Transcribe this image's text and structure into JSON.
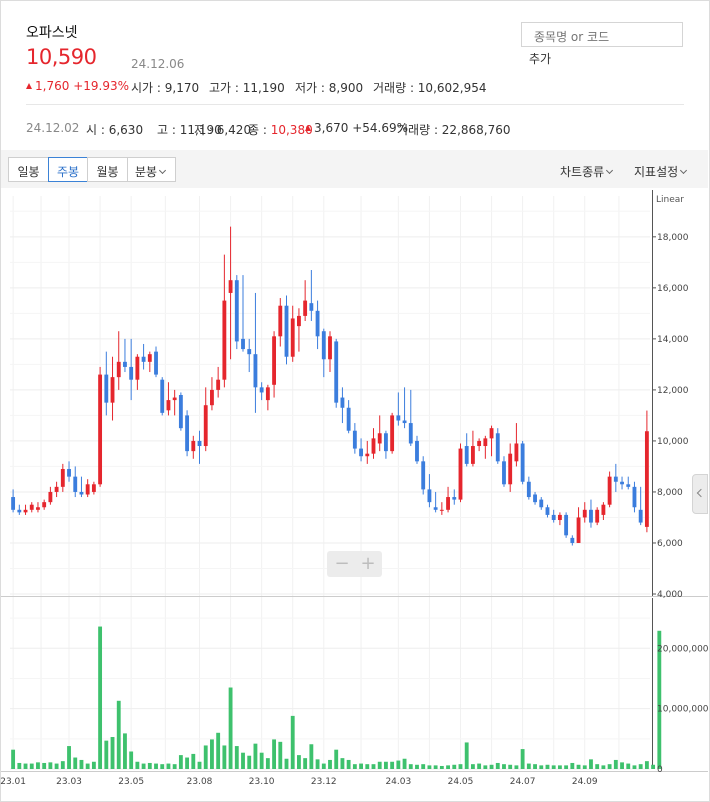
{
  "stock": {
    "name": "오파스넷",
    "price": "10,590",
    "date": "24.12.06",
    "change": "1,760",
    "change_pct": "+19.93%",
    "open_label": "시가",
    "open": "9,170",
    "high_label": "고가",
    "high": "11,190",
    "low_label": "저가",
    "low": "8,900",
    "volume_label": "거래량",
    "volume": "10,602,954"
  },
  "week": {
    "date": "24.12.02",
    "open_label": "시",
    "open": "6,630",
    "high_label": "고",
    "high": "11,190",
    "low_label": "저",
    "low": "6,420",
    "close_label": "종",
    "close": "10,380",
    "change": "3,670",
    "change_pct": "+54.69%",
    "volume_label": "거래량",
    "volume": "22,868,760"
  },
  "search": {
    "placeholder": "종목명 or 코드",
    "add_label": "추가"
  },
  "toolbar": {
    "tabs": [
      "일봉",
      "주봉",
      "월봉",
      "분봉"
    ],
    "active_tab": "주봉",
    "chart_type_label": "차트종류",
    "indicator_label": "지표설정"
  },
  "colors": {
    "up": "#e5262d",
    "down": "#3b7ddd",
    "volume": "#3ec16d"
  },
  "chart_data": {
    "type": "candlestick",
    "scale_label": "Linear",
    "x_ticks": [
      "23.01",
      "23.03",
      "23.05",
      "23.08",
      "23.10",
      "23.12",
      "24.03",
      "24.05",
      "24.07",
      "24.09"
    ],
    "x_tick_index": [
      0,
      9,
      19,
      30,
      40,
      50,
      62,
      72,
      82,
      92
    ],
    "y_ticks": [
      "4,000",
      "6,000",
      "8,000",
      "10,000",
      "12,000",
      "14,000",
      "16,000",
      "18,000"
    ],
    "ylim": [
      4000,
      19600
    ],
    "volume_ticks": [
      "0",
      "10,000,000",
      "20,000,000"
    ],
    "volume_ylim": [
      0,
      28000000
    ],
    "candles": [
      [
        7800,
        8100,
        7200,
        7300
      ],
      [
        7300,
        7500,
        7100,
        7200
      ],
      [
        7200,
        7500,
        7100,
        7300
      ],
      [
        7300,
        7600,
        7200,
        7500
      ],
      [
        7300,
        7600,
        7200,
        7400
      ],
      [
        7400,
        7700,
        7300,
        7600
      ],
      [
        7600,
        8200,
        7500,
        8000
      ],
      [
        8000,
        8400,
        7800,
        8200
      ],
      [
        8200,
        9100,
        8000,
        8900
      ],
      [
        8900,
        9200,
        8400,
        8600
      ],
      [
        8600,
        9000,
        7800,
        8000
      ],
      [
        8000,
        8600,
        7800,
        7900
      ],
      [
        7900,
        8500,
        7800,
        8300
      ],
      [
        8000,
        8400,
        7900,
        8300
      ],
      [
        8300,
        12900,
        8200,
        12600
      ],
      [
        12600,
        13500,
        11000,
        11500
      ],
      [
        11500,
        13300,
        10800,
        12500
      ],
      [
        12500,
        14300,
        12000,
        13100
      ],
      [
        13100,
        14000,
        12700,
        12900
      ],
      [
        12900,
        14000,
        11600,
        12400
      ],
      [
        12400,
        13400,
        12000,
        13300
      ],
      [
        13300,
        13800,
        12800,
        13100
      ],
      [
        13100,
        13500,
        12700,
        13400
      ],
      [
        13500,
        13700,
        12500,
        12600
      ],
      [
        12400,
        12500,
        11000,
        11100
      ],
      [
        11200,
        12300,
        11000,
        11600
      ],
      [
        11600,
        12000,
        11000,
        11700
      ],
      [
        11800,
        11900,
        10400,
        10500
      ],
      [
        11000,
        11200,
        9400,
        9600
      ],
      [
        9600,
        10200,
        9300,
        10000
      ],
      [
        10000,
        10400,
        9100,
        9800
      ],
      [
        9800,
        12100,
        9600,
        11400
      ],
      [
        11400,
        12500,
        11200,
        12000
      ],
      [
        12000,
        12900,
        11700,
        12400
      ],
      [
        12400,
        17300,
        12100,
        15500
      ],
      [
        15800,
        18400,
        13200,
        16300
      ],
      [
        16300,
        16500,
        13600,
        13900
      ],
      [
        14000,
        16500,
        13500,
        13600
      ],
      [
        13600,
        14000,
        12700,
        13400
      ],
      [
        13400,
        15800,
        11100,
        12100
      ],
      [
        12100,
        12300,
        11600,
        11900
      ],
      [
        11600,
        12200,
        11200,
        12100
      ],
      [
        12200,
        14300,
        11700,
        14100
      ],
      [
        14100,
        15600,
        13700,
        15300
      ],
      [
        15300,
        15700,
        13000,
        13300
      ],
      [
        13300,
        15300,
        13100,
        14800
      ],
      [
        14500,
        15200,
        13500,
        14900
      ],
      [
        14900,
        16300,
        14700,
        15500
      ],
      [
        15400,
        16700,
        14700,
        15100
      ],
      [
        15100,
        15500,
        13600,
        14100
      ],
      [
        14300,
        14400,
        12500,
        13200
      ],
      [
        13200,
        14300,
        12700,
        14100
      ],
      [
        13900,
        14000,
        11300,
        11500
      ],
      [
        11700,
        12100,
        10700,
        11300
      ],
      [
        11300,
        11600,
        10300,
        10400
      ],
      [
        10400,
        10700,
        9500,
        9700
      ],
      [
        9700,
        10100,
        9200,
        9400
      ],
      [
        9400,
        10000,
        9100,
        9500
      ],
      [
        9500,
        10500,
        9300,
        10100
      ],
      [
        9900,
        11000,
        9600,
        10300
      ],
      [
        10300,
        10400,
        9300,
        9600
      ],
      [
        9600,
        11100,
        9500,
        11000
      ],
      [
        11000,
        11900,
        10600,
        10800
      ],
      [
        10800,
        12100,
        10500,
        10700
      ],
      [
        10700,
        12000,
        9800,
        9900
      ],
      [
        10000,
        10200,
        9100,
        9200
      ],
      [
        9200,
        9400,
        7900,
        8100
      ],
      [
        8100,
        8700,
        7400,
        7600
      ],
      [
        7400,
        8000,
        7200,
        7300
      ],
      [
        7300,
        7600,
        7100,
        7300
      ],
      [
        7300,
        8200,
        7200,
        7800
      ],
      [
        7800,
        8100,
        7500,
        7700
      ],
      [
        7700,
        9900,
        7600,
        9700
      ],
      [
        9800,
        10300,
        9000,
        9100
      ],
      [
        9100,
        10400,
        9000,
        9800
      ],
      [
        9800,
        10100,
        9600,
        10000
      ],
      [
        9800,
        10200,
        9300,
        10100
      ],
      [
        10100,
        10600,
        9400,
        10500
      ],
      [
        10300,
        10500,
        9100,
        9200
      ],
      [
        9200,
        9400,
        8200,
        8300
      ],
      [
        8300,
        9900,
        8000,
        9500
      ],
      [
        9200,
        10700,
        9000,
        9900
      ],
      [
        9900,
        10000,
        8300,
        8400
      ],
      [
        8400,
        8600,
        7700,
        7800
      ],
      [
        7900,
        8000,
        7500,
        7600
      ],
      [
        7700,
        7800,
        7300,
        7400
      ],
      [
        7400,
        7500,
        7000,
        7100
      ],
      [
        7100,
        7300,
        6800,
        6900
      ],
      [
        6900,
        7200,
        6700,
        7100
      ],
      [
        7100,
        7200,
        6200,
        6300
      ],
      [
        6200,
        6300,
        5900,
        6000
      ],
      [
        6000,
        7400,
        6000,
        7000
      ],
      [
        7000,
        7600,
        6800,
        7300
      ],
      [
        7300,
        7700,
        6600,
        6800
      ],
      [
        6800,
        7400,
        6700,
        7300
      ],
      [
        7100,
        7600,
        6900,
        7500
      ],
      [
        7500,
        8800,
        7400,
        8600
      ],
      [
        8600,
        9100,
        8000,
        8400
      ],
      [
        8400,
        8600,
        8100,
        8300
      ],
      [
        8300,
        8600,
        8100,
        8200
      ],
      [
        8200,
        8400,
        7200,
        7400
      ],
      [
        7300,
        8200,
        6700,
        6800
      ],
      [
        6630,
        11190,
        6420,
        10380
      ]
    ],
    "volumes": [
      3200000,
      1000000,
      900000,
      900000,
      1100000,
      1000000,
      1100000,
      900000,
      1300000,
      3800000,
      1900000,
      1500000,
      900000,
      1200000,
      23600000,
      4700000,
      5300000,
      11300000,
      5900000,
      2900000,
      1200000,
      900000,
      1000000,
      900000,
      800000,
      900000,
      800000,
      2300000,
      1900000,
      2500000,
      1200000,
      3900000,
      4900000,
      6000000,
      3900000,
      13500000,
      3800000,
      2700000,
      2200000,
      4200000,
      2700000,
      1800000,
      4900000,
      4500000,
      1700000,
      8800000,
      2300000,
      1800000,
      4100000,
      1600000,
      900000,
      1500000,
      3200000,
      1800000,
      1500000,
      800000,
      900000,
      800000,
      800000,
      1200000,
      1200000,
      1200000,
      1400000,
      1700000,
      800000,
      700000,
      800000,
      600000,
      600000,
      500000,
      600000,
      700000,
      800000,
      4400000,
      800000,
      900000,
      600000,
      700000,
      1000000,
      800000,
      700000,
      600000,
      3300000,
      900000,
      800000,
      600000,
      700000,
      600000,
      600000,
      600000,
      1000000,
      700000,
      600000,
      1600000,
      800000,
      600000,
      800000,
      1500000,
      1100000,
      900000,
      600000,
      800000,
      1300000,
      700000,
      22900000
    ]
  }
}
